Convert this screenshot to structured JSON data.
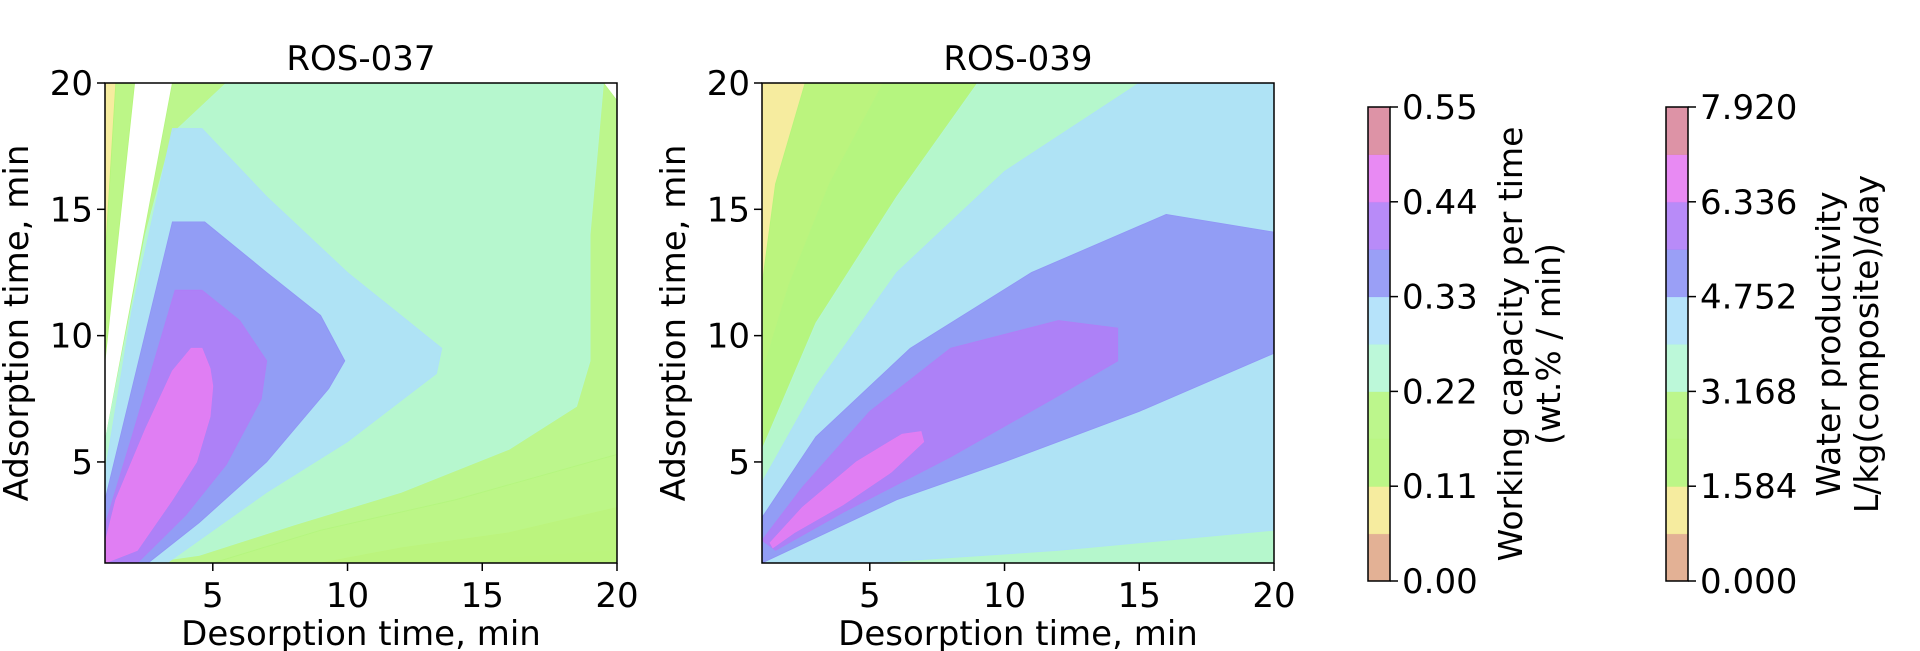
{
  "chart_data": [
    {
      "type": "contour",
      "title": "ROS-037",
      "xlabel": "Desorption time, min",
      "ylabel": "Adsorption time, min",
      "xlim": [
        1,
        20
      ],
      "ylim": [
        1,
        20
      ],
      "xticks": [
        5,
        10,
        15,
        20
      ],
      "yticks": [
        5,
        10,
        15,
        20
      ],
      "colorbar": "Working capacity per time (wt.% / min)",
      "level_regions": [
        {
          "level_index": 0,
          "polygon": [
            [
              16,
              1
            ],
            [
              20,
              1
            ],
            [
              20,
              1.5
            ],
            [
              16,
              1.2
            ]
          ]
        },
        {
          "level_index": 1,
          "polygon": [
            [
              1,
              13
            ],
            [
              1.4,
              20
            ],
            [
              1,
              20
            ]
          ]
        },
        {
          "level_index": 1,
          "polygon": [
            [
              9,
              1
            ],
            [
              20,
              1
            ],
            [
              20,
              3.2
            ],
            [
              16,
              2.2
            ],
            [
              12,
              1.6
            ]
          ]
        },
        {
          "level_index": 2,
          "polygon": [
            [
              1,
              9
            ],
            [
              2.1,
              20
            ],
            [
              1.4,
              20
            ],
            [
              1,
              13
            ]
          ]
        },
        {
          "level_index": 2,
          "polygon": [
            [
              5,
              1
            ],
            [
              20,
              1
            ],
            [
              20,
              5.3
            ],
            [
              14,
              3.5
            ],
            [
              9,
              2.3
            ]
          ]
        },
        {
          "level_index": 3,
          "polygon": [
            [
              1,
              5.8
            ],
            [
              3.5,
              20
            ],
            [
              19.5,
              20
            ],
            [
              20,
              19.3
            ],
            [
              20,
              5.3
            ],
            [
              14,
              3.5
            ],
            [
              9,
              2.3
            ],
            [
              5,
              1
            ],
            [
              2.2,
              1
            ],
            [
              1.5,
              2.5
            ]
          ]
        },
        {
          "level_index": 4,
          "polygon": [
            [
              1,
              5.8
            ],
            [
              2.5,
              14
            ],
            [
              3.5,
              18
            ],
            [
              5.5,
              20
            ],
            [
              9,
              20
            ],
            [
              19.5,
              20
            ],
            [
              19,
              14
            ],
            [
              19,
              9
            ],
            [
              18.5,
              7.2
            ],
            [
              16,
              5.5
            ],
            [
              12,
              3.8
            ],
            [
              8,
              2.5
            ],
            [
              4.5,
              1.3
            ],
            [
              2.5,
              1
            ],
            [
              1,
              1
            ]
          ]
        },
        {
          "level_index": 5,
          "polygon": [
            [
              1,
              4.6
            ],
            [
              2,
              11
            ],
            [
              3.5,
              18.2
            ],
            [
              4.6,
              18.2
            ],
            [
              7,
              15.5
            ],
            [
              10,
              12.5
            ],
            [
              13.5,
              9.5
            ],
            [
              13.3,
              8.5
            ],
            [
              10,
              5.8
            ],
            [
              7,
              3.8
            ],
            [
              3.3,
              1
            ],
            [
              1,
              1
            ]
          ]
        },
        {
          "level_index": 6,
          "polygon": [
            [
              1,
              3.5
            ],
            [
              3.5,
              14.5
            ],
            [
              4.7,
              14.5
            ],
            [
              7,
              12.5
            ],
            [
              9,
              10.8
            ],
            [
              9.9,
              9
            ],
            [
              9.3,
              7.9
            ],
            [
              7,
              5
            ],
            [
              4.5,
              2.6
            ],
            [
              2.6,
              1
            ],
            [
              1,
              1
            ]
          ]
        },
        {
          "level_index": 7,
          "polygon": [
            [
              1,
              2.5
            ],
            [
              2,
              6
            ],
            [
              3.6,
              11.8
            ],
            [
              4.6,
              11.8
            ],
            [
              6,
              10.6
            ],
            [
              7,
              9
            ],
            [
              6.8,
              7.5
            ],
            [
              5.5,
              4.9
            ],
            [
              4,
              2.9
            ],
            [
              2.2,
              1
            ],
            [
              1,
              1
            ]
          ]
        },
        {
          "level_index": 8,
          "polygon": [
            [
              1,
              1.8
            ],
            [
              1.4,
              3.5
            ],
            [
              2.5,
              6.3
            ],
            [
              3.5,
              8.6
            ],
            [
              4.2,
              9.5
            ],
            [
              4.6,
              9.5
            ],
            [
              4.9,
              8.7
            ],
            [
              5,
              8
            ],
            [
              4.9,
              6.8
            ],
            [
              4.4,
              5
            ],
            [
              3.5,
              3.5
            ],
            [
              2.2,
              1.5
            ],
            [
              1,
              1
            ]
          ]
        }
      ]
    },
    {
      "type": "contour",
      "title": "ROS-039",
      "xlabel": "Desorption time, min",
      "ylabel": "Adsorption time, min",
      "xlim": [
        1,
        20
      ],
      "ylim": [
        1,
        20
      ],
      "xticks": [
        5,
        10,
        15,
        20
      ],
      "yticks": [
        5,
        10,
        15,
        20
      ],
      "colorbar": "Water productivity L/kg(composite)/day",
      "level_regions": [
        {
          "level_index": 1,
          "polygon": [
            [
              1,
              1
            ],
            [
              20,
              1
            ],
            [
              20,
              20
            ],
            [
              1,
              20
            ]
          ]
        },
        {
          "level_index": 2,
          "polygon": [
            [
              1,
              12
            ],
            [
              1.5,
              16
            ],
            [
              2.6,
              20
            ],
            [
              20,
              20
            ],
            [
              20,
              1
            ],
            [
              1,
              1
            ]
          ]
        },
        {
          "level_index": 3,
          "polygon": [
            [
              1,
              8.5
            ],
            [
              2,
              12
            ],
            [
              3.5,
              16
            ],
            [
              5.5,
              20
            ],
            [
              20,
              20
            ],
            [
              20,
              1
            ],
            [
              1,
              1
            ]
          ]
        },
        {
          "level_index": 4,
          "polygon": [
            [
              1,
              5.5
            ],
            [
              3,
              10.5
            ],
            [
              6,
              15.5
            ],
            [
              9,
              20
            ],
            [
              20,
              20
            ],
            [
              20,
              1
            ],
            [
              1,
              1
            ]
          ]
        },
        {
          "level_index": 5,
          "polygon": [
            [
              1,
              4.2
            ],
            [
              3,
              8
            ],
            [
              6,
              12.5
            ],
            [
              10,
              16.5
            ],
            [
              15,
              20
            ],
            [
              20,
              20
            ],
            [
              20,
              2.3
            ],
            [
              12,
              1.5
            ],
            [
              5,
              1
            ],
            [
              1,
              1
            ]
          ]
        },
        {
          "level_index": 6,
          "polygon": [
            [
              1,
              2.8
            ],
            [
              3,
              6
            ],
            [
              6.5,
              9.5
            ],
            [
              11,
              12.5
            ],
            [
              16,
              14.8
            ],
            [
              20,
              14.1
            ],
            [
              20,
              9.3
            ],
            [
              15,
              7
            ],
            [
              10,
              5
            ],
            [
              6,
              3.5
            ],
            [
              2,
              1.5
            ],
            [
              1,
              1
            ]
          ]
        },
        {
          "level_index": 7,
          "polygon": [
            [
              1,
              1.9
            ],
            [
              2.5,
              4
            ],
            [
              5,
              7
            ],
            [
              8,
              9.5
            ],
            [
              12,
              10.6
            ],
            [
              14.2,
              10.3
            ],
            [
              14.2,
              9
            ],
            [
              11.8,
              7.5
            ],
            [
              8,
              5.2
            ],
            [
              4,
              3
            ],
            [
              1.5,
              1.5
            ]
          ]
        },
        {
          "level_index": 8,
          "polygon": [
            [
              1.3,
              1.8
            ],
            [
              2.5,
              3.2
            ],
            [
              4.5,
              5
            ],
            [
              6.2,
              6.1
            ],
            [
              6.9,
              6.2
            ],
            [
              7,
              5.8
            ],
            [
              5.8,
              4.6
            ],
            [
              4,
              3.3
            ],
            [
              2.2,
              2.2
            ],
            [
              1.4,
              1.6
            ]
          ]
        }
      ]
    }
  ],
  "colorbars": [
    {
      "label_line1": "Working capacity per time",
      "label_line2": "(wt.% / min)",
      "tick_labels": [
        "0.00",
        "0.11",
        "0.22",
        "0.33",
        "0.44",
        "0.55"
      ],
      "levels": [
        0.0,
        0.11,
        0.22,
        0.33,
        0.44,
        0.55
      ]
    },
    {
      "label_line1": "Water productivity",
      "label_line2": "L/kg(composite)/day",
      "tick_labels": [
        "0.000",
        "1.584",
        "3.168",
        "4.752",
        "6.336",
        "7.920"
      ],
      "levels": [
        0.0,
        1.584,
        3.168,
        4.752,
        6.336,
        7.92
      ]
    }
  ],
  "level_colors": [
    "#e0a88a",
    "#f5ea95",
    "#b5f57a",
    "#b5f580",
    "#b5f7d5",
    "#aee0fa",
    "#8f95f5",
    "#b07ef7",
    "#e57df2",
    "#d9879c"
  ]
}
